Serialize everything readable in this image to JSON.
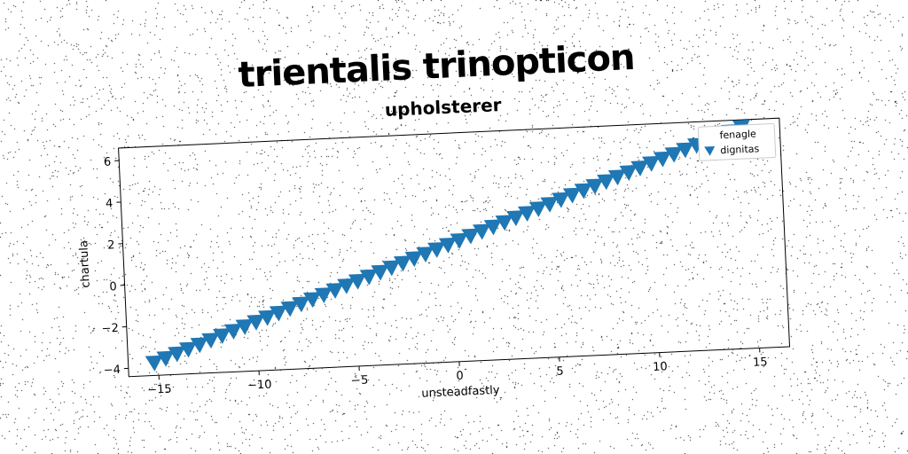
{
  "page": {
    "title": "trientalis trinopticon"
  },
  "chart_data": {
    "type": "scatter",
    "title": "upholsterer",
    "xlabel": "unsteadfastly",
    "ylabel": "chartula",
    "xlim": [
      -16.5,
      16.5
    ],
    "ylim": [
      -4.4,
      6.6
    ],
    "xticks": [
      -15,
      -10,
      -5,
      0,
      5,
      10,
      15
    ],
    "xtick_labels": [
      "−15",
      "−10",
      "−5",
      "0",
      "5",
      "10",
      "15"
    ],
    "yticks": [
      -4,
      -2,
      0,
      2,
      4,
      6
    ],
    "ytick_labels": [
      "−4",
      "−2",
      "0",
      "2",
      "4",
      "6"
    ],
    "grid": false,
    "legend_position": "top-right",
    "series": [
      {
        "name": "fenagle",
        "marker": "none",
        "x": [],
        "y": []
      },
      {
        "name": "dignitas",
        "marker": "triangle-down",
        "color": "#1f77b4",
        "x_start": -15.2,
        "x_end": 14.6,
        "count": 53,
        "slope": 0.337,
        "intercept": 1.35
      }
    ]
  }
}
